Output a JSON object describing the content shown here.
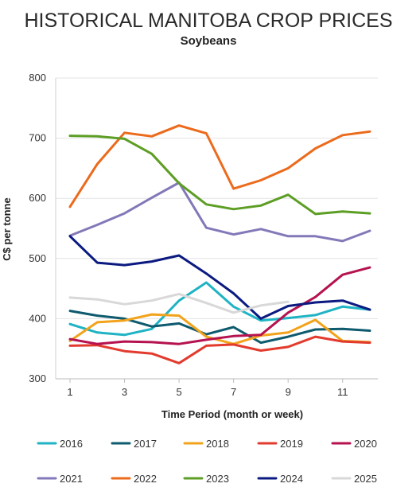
{
  "chart_data": {
    "type": "line",
    "title": "HISTORICAL MANITOBA CROP PRICES",
    "subtitle": "Soybeans",
    "xlabel": "Time Period (month or week)",
    "ylabel": "C$ per tonne",
    "xlim": [
      1,
      12
    ],
    "ylim": [
      300,
      800
    ],
    "x_ticks": [
      1,
      3,
      5,
      7,
      9,
      11
    ],
    "y_ticks": [
      300,
      400,
      500,
      600,
      700,
      800
    ],
    "grid": "horizontal",
    "legend_position": "bottom",
    "x": [
      1,
      2,
      3,
      4,
      5,
      6,
      7,
      8,
      9,
      10,
      11,
      12
    ],
    "series": [
      {
        "name": "2016",
        "color": "#1fb3c4",
        "values": [
          391,
          377,
          373,
          383,
          430,
          460,
          420,
          397,
          401,
          406,
          420,
          415
        ]
      },
      {
        "name": "2017",
        "color": "#0e5a6e",
        "values": [
          413,
          405,
          400,
          387,
          392,
          374,
          386,
          360,
          370,
          382,
          383,
          380
        ]
      },
      {
        "name": "2018",
        "color": "#f2a31b",
        "values": [
          363,
          394,
          397,
          407,
          405,
          370,
          358,
          372,
          377,
          398,
          363,
          361
        ]
      },
      {
        "name": "2019",
        "color": "#e23b2e",
        "values": [
          355,
          356,
          346,
          342,
          326,
          355,
          357,
          347,
          353,
          370,
          362,
          360
        ]
      },
      {
        "name": "2020",
        "color": "#b5124f",
        "values": [
          366,
          358,
          362,
          361,
          358,
          365,
          371,
          373,
          410,
          436,
          473,
          485
        ]
      },
      {
        "name": "2021",
        "color": "#8378b8",
        "values": [
          538,
          556,
          575,
          601,
          626,
          551,
          540,
          549,
          537,
          537,
          529,
          546
        ]
      },
      {
        "name": "2022",
        "color": "#ec6a1c",
        "values": [
          586,
          657,
          709,
          703,
          721,
          708,
          616,
          630,
          650,
          683,
          705,
          711
        ]
      },
      {
        "name": "2023",
        "color": "#5d9e25",
        "values": [
          704,
          703,
          699,
          674,
          625,
          590,
          582,
          588,
          606,
          574,
          578,
          575
        ]
      },
      {
        "name": "2024",
        "color": "#0b1a80",
        "values": [
          537,
          493,
          489,
          495,
          505,
          475,
          442,
          400,
          421,
          427,
          430,
          415
        ]
      },
      {
        "name": "2025",
        "color": "#d8d8d8",
        "values": [
          435,
          432,
          424,
          430,
          441,
          426,
          410,
          422,
          428,
          null,
          null,
          null
        ]
      }
    ]
  }
}
